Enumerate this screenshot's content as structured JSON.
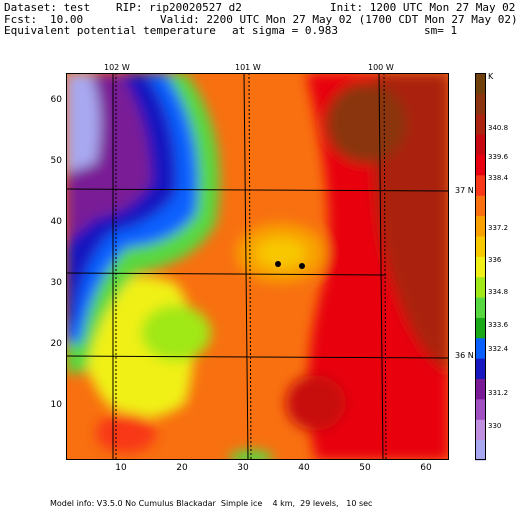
{
  "header": {
    "dataset": "Dataset: test",
    "rip": "RIP: rip20020527 d2",
    "init": "Init: 1200 UTC Mon 27 May 02",
    "fcst_label": "Fcst:",
    "fcst_value": "10.00",
    "valid": "Valid: 2200 UTC Mon 27 May 02 (1700 CDT Mon 27 May 02)",
    "field": "Equivalent potential temperature",
    "sigma": "at sigma = 0.983",
    "sm": "sm= 1"
  },
  "map": {
    "lon_labels": [
      "102 W",
      "101 W",
      "100 W"
    ],
    "lat_labels": [
      "37 N",
      "36 N"
    ],
    "y_ticks": [
      "60",
      "50",
      "40",
      "30",
      "20",
      "10"
    ],
    "x_ticks": [
      "10",
      "20",
      "30",
      "40",
      "50",
      "60"
    ]
  },
  "colorbar": {
    "unit": "K",
    "labels": [
      "340.8",
      "339.6",
      "338.4",
      "337.2",
      "336",
      "334.8",
      "333.6",
      "332.4",
      "331.2",
      "330"
    ],
    "colors": [
      "#a8a8f0",
      "#c090e0",
      "#a050c0",
      "#7a1a96",
      "#1818c0",
      "#0a60ff",
      "#18a818",
      "#58d840",
      "#a0e818",
      "#f0f018",
      "#f8c800",
      "#f8a000",
      "#f87010",
      "#f83818",
      "#e80010",
      "#c80810",
      "#aa2410",
      "#8a3410",
      "#70400c"
    ]
  },
  "footer": {
    "model_info": "Model info: V3.5.0 No Cumulus Blackadar  Simple ice    4 km,  29 levels,   10 sec"
  }
}
